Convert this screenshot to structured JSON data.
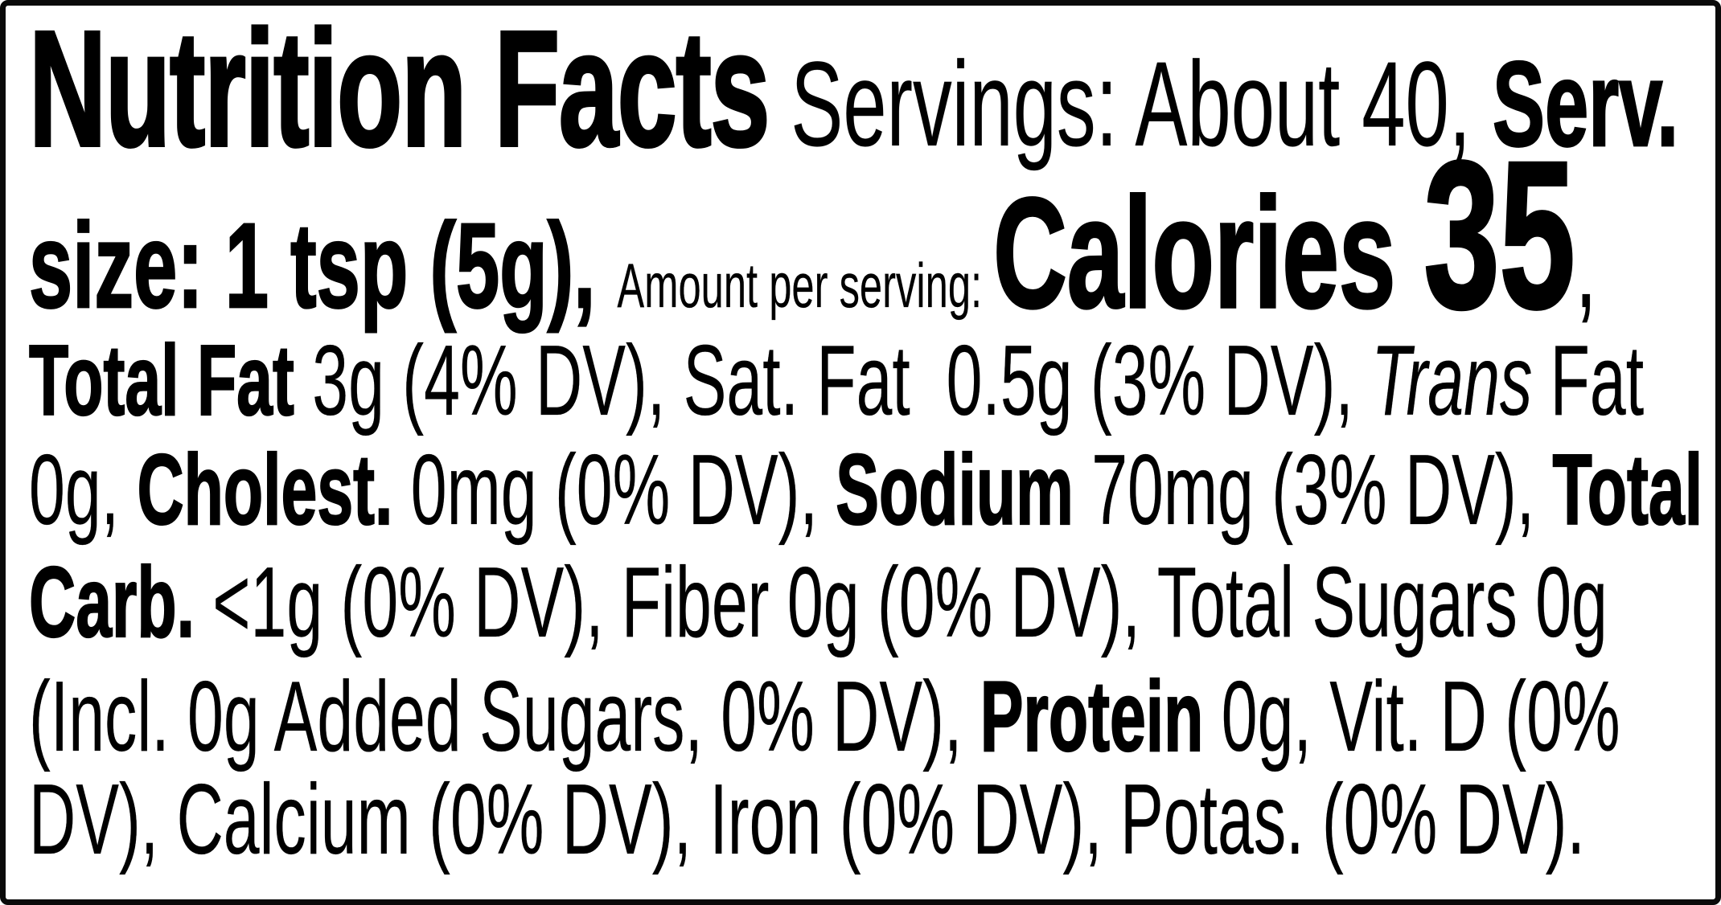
{
  "colors": {
    "text": "#000000",
    "background": "#ffffff",
    "border": "#0a0a0a"
  },
  "lines": {
    "l1": {
      "title": "Nutrition Facts",
      "servings": " Servings: About 40, ",
      "serv_size_start": "Serv."
    },
    "l2": {
      "serv_size_end": "size: 1 tsp (5g), ",
      "amount_per_serving": "Amount per serving: ",
      "calories_label": "Calories ",
      "calories_value": "35",
      "comma": ","
    },
    "l3": {
      "total_fat_label": "Total Fat ",
      "fat_values": "3g (4% DV), Sat. Fat  0.5g (3% DV), ",
      "trans_italic": "Trans",
      "trans_fat_word": " Fat"
    },
    "l4": {
      "trans_fat_value": "0g, ",
      "cholesterol_label": "Cholest. ",
      "cholesterol_value": "0mg (0% DV), ",
      "sodium_label": "Sodium ",
      "sodium_value": "70mg (3% DV), ",
      "total_carb_label_start": "Total"
    },
    "l5": {
      "total_carb_label_end": "Carb. ",
      "carb_values": "<1g (0% DV), Fiber 0g (0% DV), Total Sugars 0g"
    },
    "l6": {
      "added_sugars": "(Incl. 0g Added Sugars, 0% DV), ",
      "protein_label": "Protein ",
      "protein_value": "0g, Vit. D (0%"
    },
    "l7": {
      "minerals": "DV), Calcium (0% DV), Iron (0% DV), Potas. (0% DV)."
    }
  },
  "nutrition_summary": {
    "servings": "About 40",
    "serving_size": "1 tsp (5g)",
    "calories": "35",
    "total_fat": "3g (4% DV)",
    "saturated_fat": "0.5g (3% DV)",
    "trans_fat": "0g",
    "cholesterol": "0mg (0% DV)",
    "sodium": "70mg (3% DV)",
    "total_carb": "<1g (0% DV)",
    "fiber": "0g (0% DV)",
    "total_sugars": "0g",
    "added_sugars": "Incl. 0g Added Sugars, 0% DV",
    "protein": "0g",
    "vitamin_d": "0% DV",
    "calcium": "0% DV",
    "iron": "0% DV",
    "potassium": "0% DV"
  }
}
